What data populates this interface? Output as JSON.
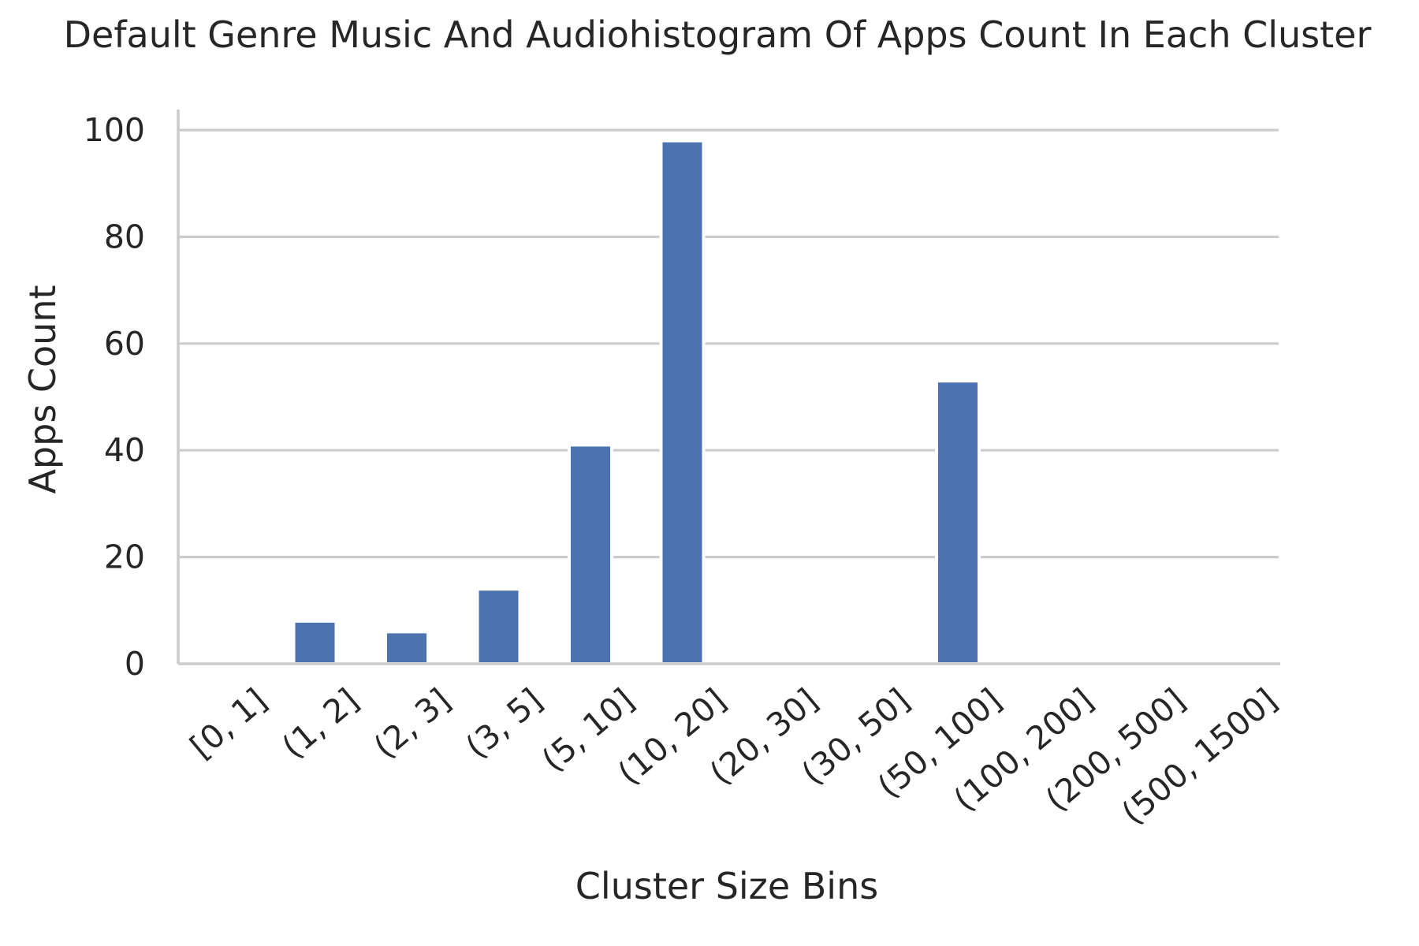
{
  "chart_data": {
    "type": "bar",
    "title": "Default Genre Music And Audiohistogram Of Apps Count In Each Cluster",
    "xlabel": "Cluster Size Bins",
    "ylabel": "Apps Count",
    "categories": [
      "[0, 1]",
      "(1, 2]",
      "(2, 3]",
      "(3, 5]",
      "(5, 10]",
      "(10, 20]",
      "(20, 30]",
      "(30, 50]",
      "(50, 100]",
      "(100, 200]",
      "(200, 500]",
      "(500, 1500]"
    ],
    "values": [
      0,
      8,
      6,
      14,
      41,
      98,
      0,
      0,
      53,
      0,
      0,
      0
    ],
    "ylim": [
      0,
      103
    ],
    "yticks": [
      0,
      20,
      40,
      60,
      80,
      100
    ],
    "grid": "horizontal",
    "colors": {
      "bar": "#4c72b0",
      "grid": "#cccccc",
      "text": "#262626"
    }
  }
}
